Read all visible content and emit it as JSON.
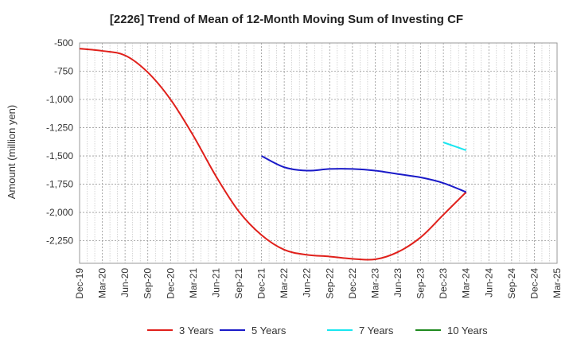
{
  "chart_data": {
    "type": "line",
    "title": "[2226]  Trend of Mean of 12-Month Moving Sum of Investing CF",
    "ylabel": "Amount (million yen)",
    "xlabel": "",
    "ylim": [
      -2450,
      -500
    ],
    "yticks": [
      -500,
      -750,
      -1000,
      -1250,
      -1500,
      -1750,
      -2000,
      -2250
    ],
    "ytick_labels": [
      "-500",
      "-750",
      "-1,000",
      "-1,250",
      "-1,500",
      "-1,750",
      "-2,000",
      "-2,250"
    ],
    "x_categories": [
      "Dec-19",
      "Mar-20",
      "Jun-20",
      "Sep-20",
      "Dec-20",
      "Mar-21",
      "Jun-21",
      "Sep-21",
      "Dec-21",
      "Mar-22",
      "Jun-22",
      "Sep-22",
      "Dec-22",
      "Mar-23",
      "Jun-23",
      "Sep-23",
      "Dec-23",
      "Mar-24",
      "Jun-24",
      "Sep-24",
      "Dec-24",
      "Mar-25"
    ],
    "grid": true,
    "legend_position": "bottom",
    "series": [
      {
        "name": "3 Years",
        "color": "#e0201b",
        "x": [
          "Dec-19",
          "Mar-20",
          "Jun-20",
          "Sep-20",
          "Dec-20",
          "Mar-21",
          "Jun-21",
          "Sep-21",
          "Dec-21",
          "Mar-22",
          "Jun-22",
          "Sep-22",
          "Dec-22",
          "Mar-23",
          "Jun-23",
          "Sep-23",
          "Dec-23",
          "Mar-24"
        ],
        "y": [
          -550,
          -570,
          -610,
          -760,
          -1000,
          -1320,
          -1680,
          -1990,
          -2200,
          -2330,
          -2375,
          -2390,
          -2410,
          -2415,
          -2350,
          -2220,
          -2020,
          -1820
        ]
      },
      {
        "name": "5 Years",
        "color": "#1a1ac8",
        "x": [
          "Dec-21",
          "Mar-22",
          "Jun-22",
          "Sep-22",
          "Dec-22",
          "Mar-23",
          "Jun-23",
          "Sep-23",
          "Dec-23",
          "Mar-24"
        ],
        "y": [
          -1500,
          -1600,
          -1630,
          -1615,
          -1615,
          -1630,
          -1660,
          -1690,
          -1740,
          -1820
        ]
      },
      {
        "name": "7 Years",
        "color": "#19e6f0",
        "x": [
          "Dec-23",
          "Mar-24"
        ],
        "y": [
          -1380,
          -1450
        ]
      },
      {
        "name": "10 Years",
        "color": "#1f8a1f",
        "x": [],
        "y": []
      }
    ]
  }
}
